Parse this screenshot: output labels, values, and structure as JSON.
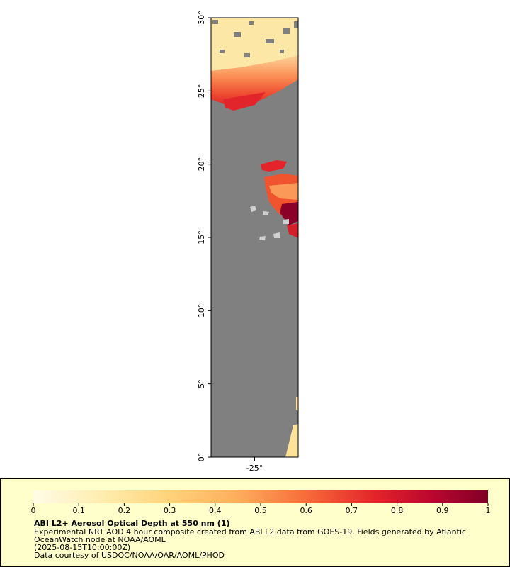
{
  "chart_data": {
    "type": "map",
    "xlim": [
      -28,
      -22
    ],
    "ylim": [
      0,
      30
    ],
    "xticks": [
      {
        "value": -25,
        "label": "-25°"
      }
    ],
    "yticks": [
      {
        "value": 0,
        "label": "0°"
      },
      {
        "value": 5,
        "label": "5°"
      },
      {
        "value": 10,
        "label": "10°"
      },
      {
        "value": 15,
        "label": "15°"
      },
      {
        "value": 20,
        "label": "20°"
      },
      {
        "value": 25,
        "label": "25°"
      },
      {
        "value": 30,
        "label": "30°"
      }
    ],
    "colorbar": {
      "lim": [
        0,
        1
      ],
      "ticks": [
        0,
        0.1,
        0.2,
        0.3,
        0.4,
        0.5,
        0.6,
        0.7,
        0.8,
        0.9,
        1
      ]
    },
    "title": "ABI L2+ Aerosol Optical Depth at 550 nm (1)",
    "description": [
      "Experimental NRT AOD 4 hour composite created from ABI L2 data from GOES-19. Fields generated by Atlantic",
      "OceanWatch node at NOAA/AOML",
      "(2025-08-15T10:00:00Z)",
      "Data courtesy of USDOC/NOAA/OAR/AOML/PHOD"
    ]
  }
}
